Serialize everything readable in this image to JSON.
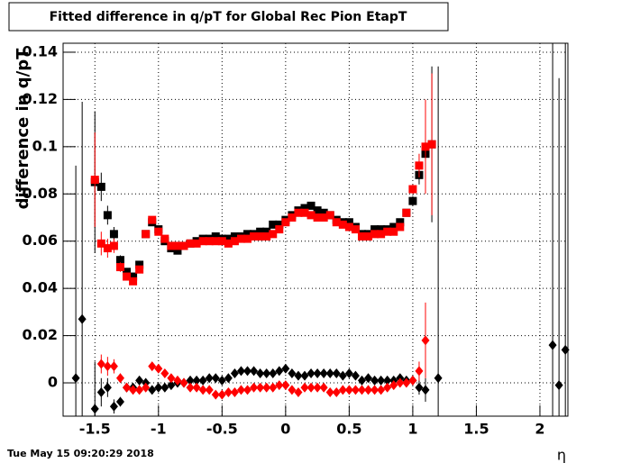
{
  "chart_data": {
    "type": "scatter",
    "title": "Fitted difference in q/pT for Global Rec Pion EtapT",
    "y_label": "difference in q/pT",
    "x_label": "η",
    "date": "Tue May 15 09:20:29 2018",
    "xlim": [
      -1.75,
      2.22
    ],
    "ylim": [
      -0.0141,
      0.1438
    ],
    "xticks": [
      -1.5,
      -1,
      -0.5,
      0,
      0.5,
      1,
      1.5,
      2
    ],
    "yticks": [
      0,
      0.02,
      0.04,
      0.06,
      0.08,
      0.1,
      0.12,
      0.14
    ],
    "grid": true,
    "series": [
      {
        "marker": "square",
        "color": "#000000",
        "x": [
          -1.5,
          -1.45,
          -1.4,
          -1.35,
          -1.3,
          -1.25,
          -1.2,
          -1.15,
          -1.1,
          -1.05,
          -1,
          -0.95,
          -0.9,
          -0.85,
          -0.8,
          -0.75,
          -0.7,
          -0.65,
          -0.6,
          -0.55,
          -0.5,
          -0.45,
          -0.4,
          -0.35,
          -0.3,
          -0.25,
          -0.2,
          -0.15,
          -0.1,
          -0.05,
          0,
          0.05,
          0.1,
          0.15,
          0.2,
          0.25,
          0.3,
          0.35,
          0.4,
          0.45,
          0.5,
          0.55,
          0.6,
          0.65,
          0.7,
          0.75,
          0.8,
          0.85,
          0.9,
          0.95,
          1,
          1.05,
          1.1,
          1.15
        ],
        "values": [
          0.085,
          0.083,
          0.071,
          0.063,
          0.052,
          0.047,
          0.045,
          0.05,
          0.063,
          0.068,
          0.065,
          0.06,
          0.057,
          0.056,
          0.058,
          0.059,
          0.06,
          0.061,
          0.061,
          0.062,
          0.061,
          0.061,
          0.062,
          0.062,
          0.063,
          0.063,
          0.064,
          0.064,
          0.067,
          0.067,
          0.069,
          0.071,
          0.073,
          0.074,
          0.075,
          0.073,
          0.072,
          0.071,
          0.069,
          0.068,
          0.068,
          0.066,
          0.063,
          0.063,
          0.065,
          0.065,
          0.065,
          0.066,
          0.068,
          0.072,
          0.077,
          0.088,
          0.097,
          0.101
        ],
        "errors": [
          0.03,
          0.006,
          0.004,
          0.003,
          0.002,
          0.001,
          0.001,
          0.001,
          0.001,
          0.001,
          0.001,
          0.001,
          0.001,
          0.001,
          0.001,
          0.001,
          0.001,
          0.001,
          0.001,
          0.001,
          0.001,
          0.001,
          0.001,
          0.001,
          0.001,
          0.001,
          0.001,
          0.001,
          0.001,
          0.001,
          0.001,
          0.001,
          0.001,
          0.001,
          0.001,
          0.001,
          0.001,
          0.001,
          0.001,
          0.001,
          0.001,
          0.001,
          0.001,
          0.001,
          0.001,
          0.001,
          0.001,
          0.001,
          0.001,
          0.001,
          0.002,
          0.004,
          0.01,
          0.033
        ]
      },
      {
        "marker": "square",
        "color": "#ff0000",
        "x": [
          -1.5,
          -1.45,
          -1.4,
          -1.35,
          -1.3,
          -1.25,
          -1.2,
          -1.15,
          -1.1,
          -1.05,
          -1,
          -0.95,
          -0.9,
          -0.85,
          -0.8,
          -0.75,
          -0.7,
          -0.65,
          -0.6,
          -0.55,
          -0.5,
          -0.45,
          -0.4,
          -0.35,
          -0.3,
          -0.25,
          -0.2,
          -0.15,
          -0.1,
          -0.05,
          0,
          0.05,
          0.1,
          0.15,
          0.2,
          0.25,
          0.3,
          0.35,
          0.4,
          0.45,
          0.5,
          0.55,
          0.6,
          0.65,
          0.7,
          0.75,
          0.8,
          0.85,
          0.9,
          0.95,
          1,
          1.05,
          1.1,
          1.15
        ],
        "values": [
          0.086,
          0.059,
          0.057,
          0.058,
          0.049,
          0.045,
          0.043,
          0.048,
          0.063,
          0.069,
          0.064,
          0.061,
          0.058,
          0.058,
          0.058,
          0.059,
          0.059,
          0.06,
          0.06,
          0.06,
          0.06,
          0.059,
          0.06,
          0.061,
          0.061,
          0.062,
          0.062,
          0.062,
          0.063,
          0.065,
          0.068,
          0.07,
          0.072,
          0.072,
          0.071,
          0.07,
          0.07,
          0.071,
          0.068,
          0.067,
          0.066,
          0.065,
          0.062,
          0.062,
          0.063,
          0.063,
          0.064,
          0.064,
          0.066,
          0.072,
          0.082,
          0.092,
          0.1,
          0.101
        ],
        "errors": [
          0.02,
          0.005,
          0.004,
          0.003,
          0.002,
          0.001,
          0.001,
          0.001,
          0.001,
          0.001,
          0.001,
          0.001,
          0.001,
          0.001,
          0.001,
          0.001,
          0.001,
          0.001,
          0.001,
          0.001,
          0.001,
          0.001,
          0.001,
          0.001,
          0.001,
          0.001,
          0.001,
          0.001,
          0.001,
          0.001,
          0.001,
          0.001,
          0.001,
          0.001,
          0.001,
          0.001,
          0.001,
          0.001,
          0.001,
          0.001,
          0.001,
          0.001,
          0.001,
          0.001,
          0.001,
          0.001,
          0.001,
          0.001,
          0.001,
          0.001,
          0.002,
          0.005,
          0.02,
          0.03
        ]
      },
      {
        "marker": "diamond",
        "color": "#000000",
        "x": [
          -1.65,
          -1.6,
          -1.5,
          -1.45,
          -1.4,
          -1.35,
          -1.3,
          -1.25,
          -1.2,
          -1.15,
          -1.1,
          -1.05,
          -1,
          -0.95,
          -0.9,
          -0.85,
          -0.8,
          -0.75,
          -0.7,
          -0.65,
          -0.6,
          -0.55,
          -0.5,
          -0.45,
          -0.4,
          -0.35,
          -0.3,
          -0.25,
          -0.2,
          -0.15,
          -0.1,
          -0.05,
          0,
          0.05,
          0.1,
          0.15,
          0.2,
          0.25,
          0.3,
          0.35,
          0.4,
          0.45,
          0.5,
          0.55,
          0.6,
          0.65,
          0.7,
          0.75,
          0.8,
          0.85,
          0.9,
          0.95,
          1,
          1.05,
          1.1,
          1.2,
          2.1,
          2.15,
          2.2
        ],
        "values": [
          0.002,
          0.027,
          -0.011,
          -0.004,
          -0.002,
          -0.01,
          -0.008,
          -0.002,
          -0.002,
          0.001,
          0,
          -0.003,
          -0.002,
          -0.002,
          -0.001,
          0,
          0,
          0.001,
          0.001,
          0.001,
          0.002,
          0.002,
          0.001,
          0.002,
          0.004,
          0.005,
          0.005,
          0.005,
          0.004,
          0.004,
          0.004,
          0.005,
          0.006,
          0.004,
          0.003,
          0.003,
          0.004,
          0.004,
          0.004,
          0.004,
          0.004,
          0.003,
          0.004,
          0.003,
          0.001,
          0.002,
          0.001,
          0.001,
          0.001,
          0.001,
          0.002,
          0.001,
          0.001,
          -0.002,
          -0.003,
          0.002,
          0.016,
          -0.001,
          0.014
        ],
        "errors": [
          0.09,
          0.092,
          0.02,
          0.006,
          0.004,
          0.003,
          0.002,
          0.001,
          0.001,
          0.001,
          0.001,
          0.001,
          0.001,
          0.001,
          0.001,
          0.001,
          0.001,
          0.001,
          0.001,
          0.001,
          0.001,
          0.001,
          0.001,
          0.001,
          0.001,
          0.001,
          0.001,
          0.001,
          0.001,
          0.001,
          0.001,
          0.001,
          0.001,
          0.001,
          0.001,
          0.001,
          0.001,
          0.001,
          0.001,
          0.001,
          0.001,
          0.001,
          0.001,
          0.001,
          0.001,
          0.001,
          0.001,
          0.001,
          0.001,
          0.001,
          0.001,
          0.001,
          0.002,
          0.003,
          0.005,
          0.132,
          0.13,
          0.13,
          0.13
        ]
      },
      {
        "marker": "diamond",
        "color": "#ff0000",
        "x": [
          -1.45,
          -1.4,
          -1.35,
          -1.3,
          -1.25,
          -1.2,
          -1.15,
          -1.1,
          -1.05,
          -1,
          -0.95,
          -0.9,
          -0.85,
          -0.8,
          -0.75,
          -0.7,
          -0.65,
          -0.6,
          -0.55,
          -0.5,
          -0.45,
          -0.4,
          -0.35,
          -0.3,
          -0.25,
          -0.2,
          -0.15,
          -0.1,
          -0.05,
          0,
          0.05,
          0.1,
          0.15,
          0.2,
          0.25,
          0.3,
          0.35,
          0.4,
          0.45,
          0.5,
          0.55,
          0.6,
          0.65,
          0.7,
          0.75,
          0.8,
          0.85,
          0.9,
          0.95,
          1,
          1.05,
          1.1
        ],
        "values": [
          0.008,
          0.007,
          0.007,
          0.002,
          -0.002,
          -0.003,
          -0.003,
          -0.002,
          0.007,
          0.006,
          0.004,
          0.002,
          0.001,
          0,
          -0.002,
          -0.002,
          -0.003,
          -0.003,
          -0.005,
          -0.005,
          -0.004,
          -0.004,
          -0.003,
          -0.003,
          -0.002,
          -0.002,
          -0.002,
          -0.002,
          -0.001,
          -0.001,
          -0.003,
          -0.004,
          -0.002,
          -0.002,
          -0.002,
          -0.002,
          -0.004,
          -0.004,
          -0.003,
          -0.003,
          -0.003,
          -0.003,
          -0.003,
          -0.003,
          -0.003,
          -0.002,
          -0.001,
          0,
          0,
          0.001,
          0.005,
          0.018
        ],
        "errors": [
          0.004,
          0.004,
          0.003,
          0.002,
          0.001,
          0.001,
          0.001,
          0.001,
          0.001,
          0.001,
          0.001,
          0.001,
          0.001,
          0.001,
          0.001,
          0.001,
          0.001,
          0.001,
          0.001,
          0.001,
          0.001,
          0.001,
          0.001,
          0.001,
          0.001,
          0.001,
          0.001,
          0.001,
          0.001,
          0.001,
          0.001,
          0.001,
          0.001,
          0.001,
          0.001,
          0.001,
          0.001,
          0.001,
          0.001,
          0.001,
          0.001,
          0.001,
          0.001,
          0.001,
          0.001,
          0.001,
          0.001,
          0.001,
          0.001,
          0.002,
          0.004,
          0.016
        ]
      }
    ]
  }
}
